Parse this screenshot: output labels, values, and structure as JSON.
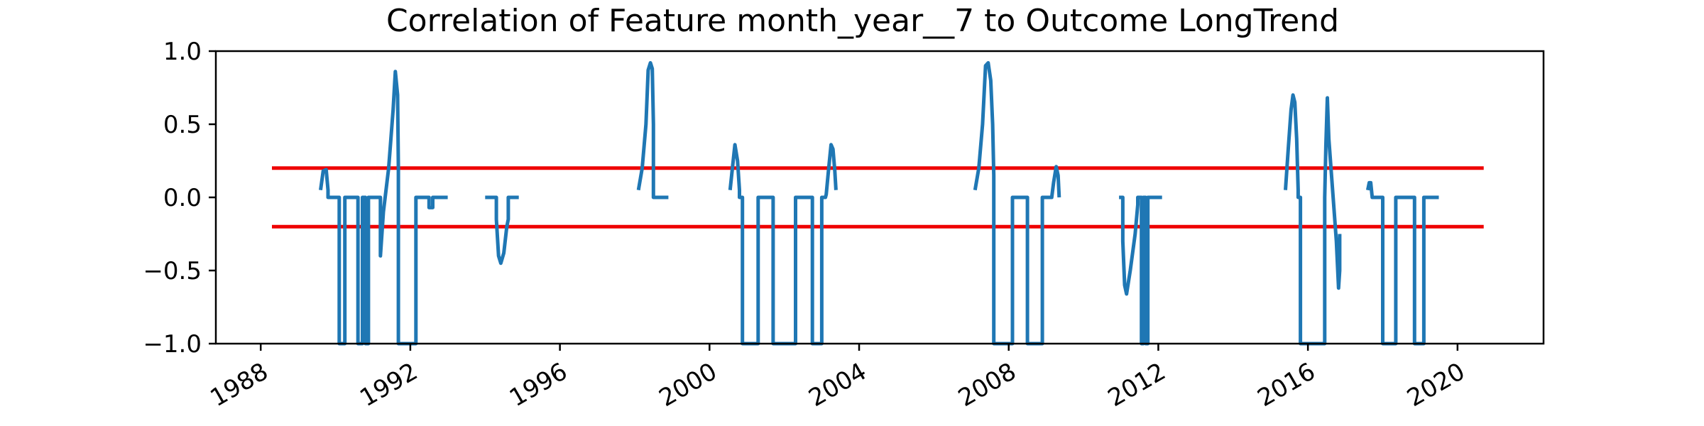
{
  "chart_data": {
    "type": "line",
    "title": "Correlation of Feature month_year__7 to Outcome LongTrend",
    "xlabel": "",
    "ylabel": "",
    "xlim": [
      1986.8,
      2022.3
    ],
    "ylim": [
      -1.0,
      1.0
    ],
    "x_ticks": [
      1988,
      1992,
      1996,
      2000,
      2004,
      2008,
      2012,
      2016,
      2020
    ],
    "x_tick_labels": [
      "1988",
      "1992",
      "1996",
      "2000",
      "2004",
      "2008",
      "2012",
      "2016",
      "2020"
    ],
    "y_ticks": [
      1.0,
      0.5,
      0.0,
      -0.5,
      -1.0
    ],
    "y_tick_labels": [
      "1.0",
      "0.5",
      "0.0",
      "−0.5",
      "−1.0"
    ],
    "grid": false,
    "series": [
      {
        "color": "#1f77b4",
        "points": [
          [
            1989.6,
            0.05
          ],
          [
            1989.67,
            0.18
          ],
          [
            1989.75,
            0.19
          ],
          [
            1989.8,
            0.05
          ],
          [
            1989.8,
            0.0
          ],
          [
            1990.1,
            0.0
          ],
          [
            1990.1,
            -1.0
          ],
          [
            1990.25,
            -1.0
          ],
          [
            1990.25,
            0.0
          ],
          [
            1990.6,
            0.0
          ],
          [
            1990.6,
            -1.0
          ],
          [
            1990.72,
            -1.0
          ],
          [
            1990.72,
            0.0
          ],
          [
            1990.8,
            0.0
          ],
          [
            1990.8,
            -1.0
          ],
          [
            1990.88,
            -1.0
          ],
          [
            1990.88,
            0.0
          ],
          [
            1991.2,
            0.0
          ],
          [
            1991.2,
            -0.4
          ],
          [
            1991.28,
            -0.1
          ],
          [
            1991.42,
            0.2
          ],
          [
            1991.54,
            0.6
          ],
          [
            1991.6,
            0.86
          ],
          [
            1991.66,
            0.7
          ],
          [
            1991.68,
            0.2
          ],
          [
            1991.68,
            -1.0
          ],
          [
            1992.15,
            -1.0
          ],
          [
            1992.15,
            0.0
          ],
          [
            1992.5,
            0.0
          ],
          [
            1992.5,
            -0.07
          ],
          [
            1992.6,
            -0.07
          ],
          [
            1992.6,
            0.0
          ],
          [
            1993.0,
            0.0
          ],
          null,
          [
            1994.0,
            0.0
          ],
          [
            1994.3,
            0.0
          ],
          [
            1994.3,
            -0.15
          ],
          [
            1994.36,
            -0.4
          ],
          [
            1994.42,
            -0.45
          ],
          [
            1994.5,
            -0.38
          ],
          [
            1994.58,
            -0.2
          ],
          [
            1994.62,
            -0.15
          ],
          [
            1994.62,
            0.0
          ],
          [
            1994.9,
            0.0
          ],
          null,
          [
            1998.1,
            0.05
          ],
          [
            1998.2,
            0.2
          ],
          [
            1998.3,
            0.5
          ],
          [
            1998.36,
            0.87
          ],
          [
            1998.42,
            0.92
          ],
          [
            1998.47,
            0.88
          ],
          [
            1998.5,
            0.5
          ],
          [
            1998.5,
            0.0
          ],
          [
            1998.9,
            0.0
          ],
          null,
          [
            2000.55,
            0.05
          ],
          [
            2000.62,
            0.22
          ],
          [
            2000.68,
            0.36
          ],
          [
            2000.75,
            0.25
          ],
          [
            2000.8,
            0.05
          ],
          [
            2000.8,
            0.0
          ],
          [
            2000.88,
            0.0
          ],
          [
            2000.88,
            -1.0
          ],
          [
            2001.3,
            -1.0
          ],
          [
            2001.3,
            0.0
          ],
          [
            2001.7,
            0.0
          ],
          [
            2001.7,
            -1.0
          ],
          [
            2002.3,
            -1.0
          ],
          [
            2002.3,
            0.0
          ],
          [
            2002.75,
            0.0
          ],
          [
            2002.75,
            -1.0
          ],
          [
            2003.0,
            -1.0
          ],
          [
            2003.0,
            0.0
          ],
          [
            2003.1,
            0.0
          ],
          [
            2003.12,
            0.02
          ],
          [
            2003.18,
            0.18
          ],
          [
            2003.25,
            0.36
          ],
          [
            2003.3,
            0.33
          ],
          [
            2003.35,
            0.18
          ],
          [
            2003.38,
            0.05
          ],
          null,
          [
            2007.1,
            0.05
          ],
          [
            2007.2,
            0.2
          ],
          [
            2007.3,
            0.5
          ],
          [
            2007.38,
            0.9
          ],
          [
            2007.45,
            0.92
          ],
          [
            2007.52,
            0.8
          ],
          [
            2007.57,
            0.5
          ],
          [
            2007.6,
            0.15
          ],
          [
            2007.6,
            -1.0
          ],
          [
            2008.1,
            -1.0
          ],
          [
            2008.1,
            0.0
          ],
          [
            2008.5,
            0.0
          ],
          [
            2008.5,
            -1.0
          ],
          [
            2008.9,
            -1.0
          ],
          [
            2008.9,
            0.0
          ],
          [
            2009.15,
            0.0
          ],
          [
            2009.2,
            0.1
          ],
          [
            2009.27,
            0.21
          ],
          [
            2009.32,
            0.15
          ],
          [
            2009.35,
            0.0
          ],
          null,
          [
            2010.95,
            0.0
          ],
          [
            2011.05,
            0.0
          ],
          [
            2011.05,
            -0.3
          ],
          [
            2011.1,
            -0.6
          ],
          [
            2011.15,
            -0.66
          ],
          [
            2011.25,
            -0.5
          ],
          [
            2011.38,
            -0.25
          ],
          [
            2011.45,
            -0.05
          ],
          [
            2011.45,
            0.0
          ],
          [
            2011.55,
            0.0
          ],
          [
            2011.55,
            -1.0
          ],
          [
            2011.6,
            -1.0
          ],
          [
            2011.6,
            0.0
          ],
          [
            2011.66,
            0.0
          ],
          [
            2011.66,
            -1.0
          ],
          [
            2011.72,
            -1.0
          ],
          [
            2011.72,
            0.0
          ],
          [
            2012.1,
            0.0
          ],
          null,
          [
            2015.4,
            0.05
          ],
          [
            2015.48,
            0.35
          ],
          [
            2015.55,
            0.6
          ],
          [
            2015.6,
            0.7
          ],
          [
            2015.65,
            0.65
          ],
          [
            2015.7,
            0.4
          ],
          [
            2015.74,
            0.05
          ],
          [
            2015.74,
            0.0
          ],
          [
            2015.8,
            0.0
          ],
          [
            2015.8,
            -1.0
          ],
          [
            2016.45,
            -1.0
          ],
          [
            2016.45,
            0.0
          ],
          [
            2016.48,
            0.35
          ],
          [
            2016.52,
            0.68
          ],
          [
            2016.56,
            0.4
          ],
          [
            2016.66,
            0.05
          ],
          [
            2016.76,
            -0.3
          ],
          [
            2016.82,
            -0.62
          ],
          [
            2016.85,
            -0.5
          ],
          [
            2016.85,
            -0.25
          ],
          null,
          [
            2017.6,
            0.05
          ],
          [
            2017.64,
            0.1
          ],
          [
            2017.68,
            0.1
          ],
          [
            2017.72,
            0.0
          ],
          [
            2018.0,
            0.0
          ],
          [
            2018.0,
            -1.0
          ],
          [
            2018.35,
            -1.0
          ],
          [
            2018.35,
            0.0
          ],
          [
            2018.85,
            0.0
          ],
          [
            2018.85,
            -1.0
          ],
          [
            2019.1,
            -1.0
          ],
          [
            2019.1,
            0.0
          ],
          [
            2019.5,
            0.0
          ]
        ]
      }
    ],
    "threshold_lines": [
      {
        "y": 0.2,
        "x": [
          1988.3,
          2020.7
        ],
        "color": "#ee0000"
      },
      {
        "y": -0.2,
        "x": [
          1988.3,
          2020.7
        ],
        "color": "#ee0000"
      }
    ]
  }
}
